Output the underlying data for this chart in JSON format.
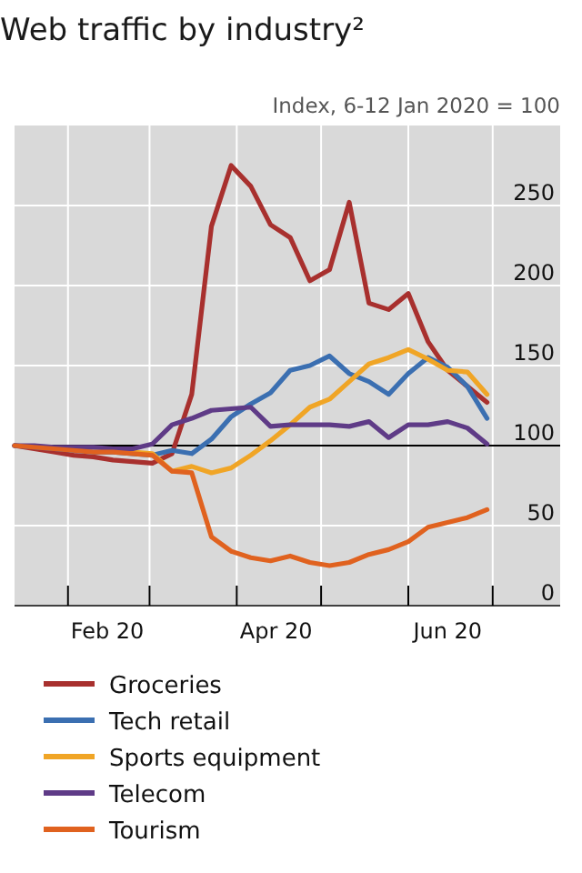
{
  "chart_data": {
    "type": "line",
    "title": "Web traffic by industry²",
    "subtitle": "Index, 6-12 Jan 2020 = 100",
    "x": [
      "2020-01-13",
      "2020-01-20",
      "2020-01-27",
      "2020-02-03",
      "2020-02-10",
      "2020-02-17",
      "2020-02-24",
      "2020-03-02",
      "2020-03-09",
      "2020-03-16",
      "2020-03-23",
      "2020-03-30",
      "2020-04-06",
      "2020-04-13",
      "2020-04-20",
      "2020-04-27",
      "2020-05-04",
      "2020-05-11",
      "2020-05-18",
      "2020-05-25",
      "2020-06-01",
      "2020-06-08",
      "2020-06-15",
      "2020-06-22",
      "2020-06-29"
    ],
    "series": [
      {
        "name": "Groceries",
        "color": "#a8302e",
        "values": [
          100,
          98,
          96,
          94,
          93,
          91,
          90,
          89,
          95,
          132,
          237,
          275,
          262,
          238,
          230,
          203,
          210,
          252,
          189,
          185,
          195,
          165,
          147,
          137,
          127
        ]
      },
      {
        "name": "Tech retail",
        "color": "#3b6fb1",
        "values": [
          100,
          99,
          98,
          97,
          96,
          96,
          95,
          94,
          97,
          95,
          104,
          118,
          126,
          133,
          147,
          150,
          156,
          145,
          140,
          132,
          145,
          155,
          149,
          137,
          117
        ]
      },
      {
        "name": "Sports equipment",
        "color": "#f0a526",
        "values": [
          null,
          null,
          null,
          null,
          null,
          97,
          96,
          95,
          84,
          87,
          83,
          86,
          94,
          103,
          113,
          124,
          129,
          140,
          151,
          155,
          160,
          154,
          147,
          146,
          132
        ]
      },
      {
        "name": "Telecom",
        "color": "#5f3b87",
        "values": [
          100,
          100,
          99,
          99,
          99,
          98,
          98,
          101,
          113,
          117,
          122,
          123,
          124,
          112,
          113,
          113,
          113,
          112,
          115,
          105,
          113,
          113,
          115,
          111,
          101
        ]
      },
      {
        "name": "Tourism",
        "color": "#e0621f",
        "values": [
          100,
          99,
          98,
          97,
          96,
          96,
          95,
          94,
          84,
          83,
          43,
          34,
          30,
          28,
          31,
          27,
          25,
          27,
          32,
          35,
          40,
          49,
          52,
          55,
          60
        ]
      }
    ],
    "xlim": [
      "2020-01-13",
      "2020-07-25"
    ],
    "xticks": [
      {
        "value": "2020-02-01",
        "label": null
      },
      {
        "value": "2020-02-15",
        "label": "Feb 20"
      },
      {
        "value": "2020-03-01",
        "label": null
      },
      {
        "value": "2020-04-01",
        "label": null
      },
      {
        "value": "2020-04-15",
        "label": "Apr 20"
      },
      {
        "value": "2020-05-01",
        "label": null
      },
      {
        "value": "2020-06-01",
        "label": null
      },
      {
        "value": "2020-06-15",
        "label": "Jun 20"
      },
      {
        "value": "2020-07-01",
        "label": null
      }
    ],
    "ylim": [
      0,
      300
    ],
    "yticks": [
      0,
      50,
      100,
      150,
      200,
      250
    ],
    "ref_lines": [
      {
        "axis": "y",
        "value": 100,
        "color": "#000000"
      }
    ],
    "grid": true,
    "legend": "bottom",
    "marker": "none",
    "line_style": "solid"
  }
}
